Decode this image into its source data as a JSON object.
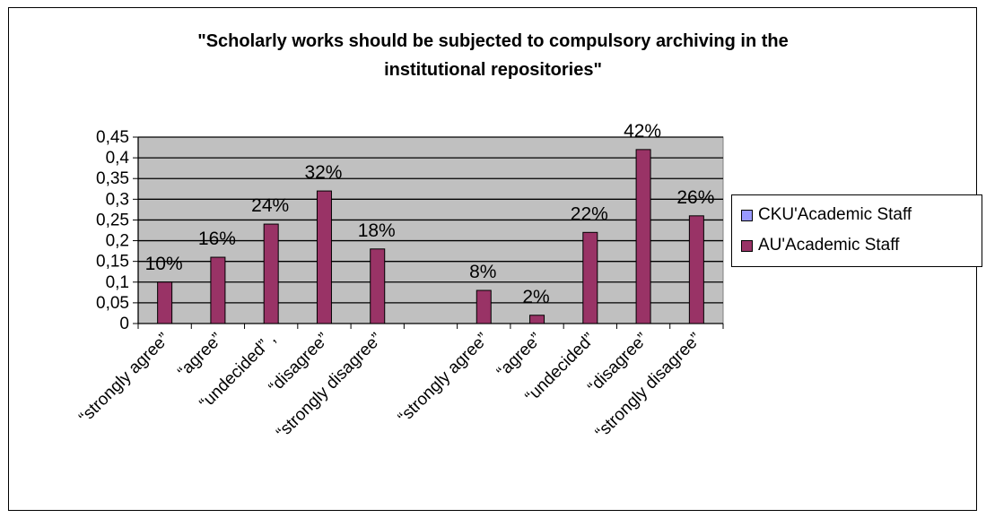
{
  "chart_data": {
    "type": "bar",
    "title_lines": [
      "\"Scholarly works should be subjected to compulsory archiving in the",
      "institutional repositories\""
    ],
    "categories": [
      "“strongly agree”",
      "“agree”",
      "“undecided” ,",
      "“disagree”",
      "“strongly disagree”",
      "",
      "“strongly agree”",
      "“agree”",
      "“undecided”",
      "“disagree”",
      "“strongly disagree”"
    ],
    "series": [
      {
        "name": "CKU'Academic Staff",
        "color": "#9999ff",
        "values": [
          null,
          null,
          null,
          null,
          null,
          null,
          null,
          null,
          null,
          null,
          null
        ]
      },
      {
        "name": "AU'Academic Staff",
        "color": "#993366",
        "values": [
          0.1,
          0.16,
          0.24,
          0.32,
          0.18,
          null,
          0.08,
          0.02,
          0.22,
          0.42,
          0.26
        ]
      }
    ],
    "data_labels": [
      "10%",
      "16%",
      "24%",
      "32%",
      "18%",
      "",
      "8%",
      "2%",
      "22%",
      "42%",
      "26%"
    ],
    "yticks": [
      "0",
      "0,05",
      "0,1",
      "0,15",
      "0,2",
      "0,25",
      "0,3",
      "0,35",
      "0,4",
      "0,45"
    ],
    "ylim": [
      0,
      0.45
    ],
    "grid": true,
    "plot_background": "#c0c0c0",
    "legend_position": "right"
  }
}
